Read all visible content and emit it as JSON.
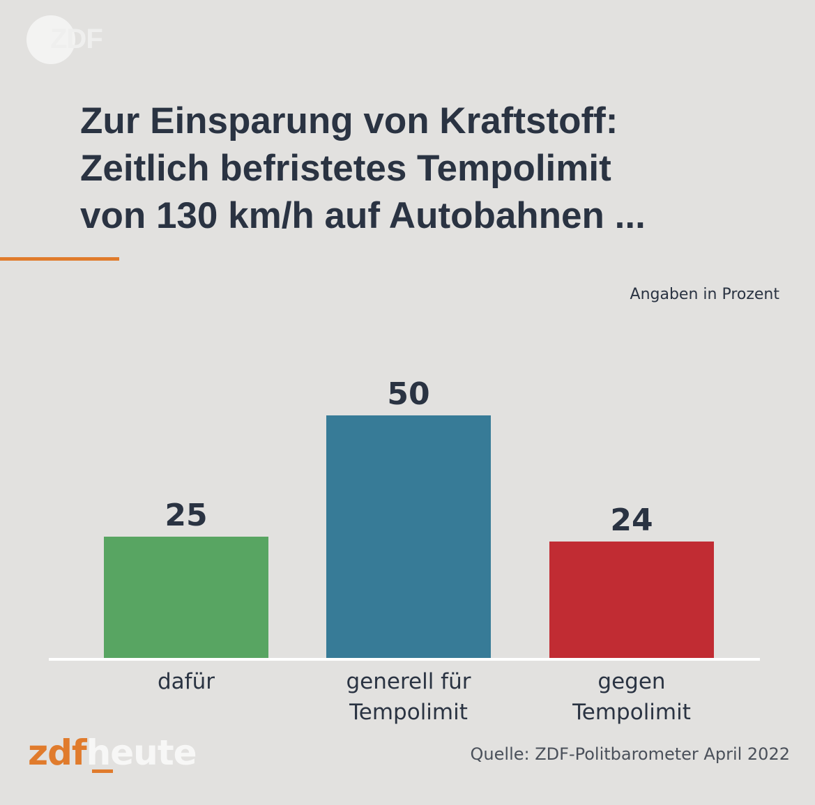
{
  "logo": {
    "text": "ZDF"
  },
  "title": {
    "lines": [
      "Zur Einsparung von Kraftstoff:",
      "Zeitlich befristetes Tempolimit",
      "von 130 km/h auf Autobahnen ..."
    ]
  },
  "unit_note": "Angaben in Prozent",
  "chart_data": {
    "type": "bar",
    "title": "Zur Einsparung von Kraftstoff: Zeitlich befristetes Tempolimit von 130 km/h auf Autobahnen ...",
    "ylabel": "Angaben in Prozent",
    "xlabel": "",
    "ylim": [
      0,
      50
    ],
    "grid": false,
    "categories": [
      [
        "dafür"
      ],
      [
        "generell für",
        "Tempolimit"
      ],
      [
        "gegen",
        "Tempolimit"
      ]
    ],
    "values": [
      25,
      50,
      24
    ],
    "colors": [
      "#58a562",
      "#377b97",
      "#c12c33"
    ]
  },
  "footer": {
    "brand_zdf": "zdf",
    "brand_heute": "heute",
    "source": "Quelle: ZDF-Politbarometer April 2022"
  }
}
